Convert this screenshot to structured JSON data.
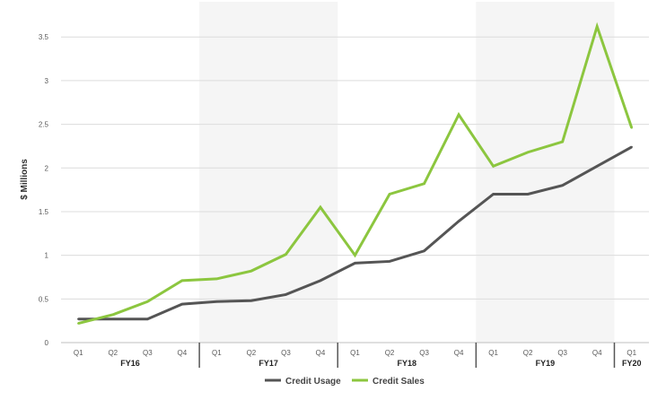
{
  "chart_data": {
    "type": "line",
    "title": "",
    "ylabel": "$ Millions",
    "xlabel": "",
    "ylim": [
      0,
      3.8
    ],
    "yticks": [
      "0",
      "0.5",
      "1",
      "1.5",
      "2",
      "2.5",
      "3",
      "3.5"
    ],
    "categories": [
      "Q1",
      "Q2",
      "Q3",
      "Q4",
      "Q1",
      "Q2",
      "Q3",
      "Q4",
      "Q1",
      "Q2",
      "Q3",
      "Q4",
      "Q1",
      "Q2",
      "Q3",
      "Q4",
      "Q1"
    ],
    "groups": [
      {
        "label": "FY16",
        "start": 0,
        "end": 3,
        "shaded": false
      },
      {
        "label": "FY17",
        "start": 4,
        "end": 7,
        "shaded": true
      },
      {
        "label": "FY18",
        "start": 8,
        "end": 11,
        "shaded": false
      },
      {
        "label": "FY19",
        "start": 12,
        "end": 15,
        "shaded": true
      },
      {
        "label": "FY20",
        "start": 16,
        "end": 16,
        "shaded": false
      }
    ],
    "series": [
      {
        "name": "Credit Usage",
        "color": "#555555",
        "values": [
          0.27,
          0.27,
          0.27,
          0.44,
          0.47,
          0.48,
          0.55,
          0.71,
          0.91,
          0.93,
          1.05,
          1.39,
          1.7,
          1.7,
          1.8,
          2.02,
          2.24
        ]
      },
      {
        "name": "Credit Sales",
        "color": "#8cc63f",
        "values": [
          0.22,
          0.32,
          0.47,
          0.71,
          0.73,
          0.82,
          1.01,
          1.55,
          1.0,
          1.7,
          1.82,
          2.61,
          2.02,
          2.18,
          2.3,
          3.62,
          2.46
        ]
      }
    ],
    "grid": true,
    "legend": "bottom-center"
  }
}
